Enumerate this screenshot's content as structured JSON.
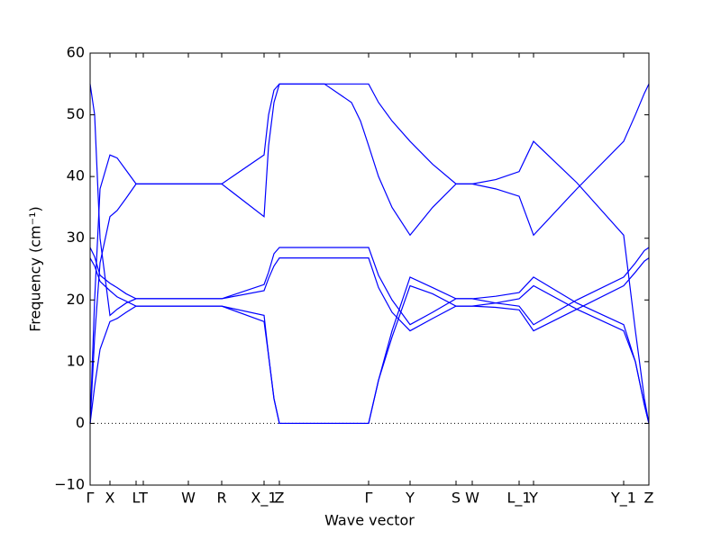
{
  "chart_data": {
    "type": "line",
    "xlabel": "Wave vector",
    "ylabel": "Frequency (cm⁻¹)",
    "xlim": [
      0,
      6.2
    ],
    "ylim": [
      -10,
      60
    ],
    "yticks": [
      {
        "value": -10,
        "label": "−10"
      },
      0,
      10,
      20,
      30,
      40,
      50,
      60
    ],
    "xticks": [
      {
        "value": 0,
        "label": "Γ"
      },
      {
        "value": 0.22,
        "label": "X"
      },
      {
        "value": 0.51,
        "label": "L"
      },
      {
        "value": 0.59,
        "label": "T"
      },
      {
        "value": 1.09,
        "label": "W"
      },
      {
        "value": 1.46,
        "label": "R"
      },
      {
        "value": 1.93,
        "label": "X_1"
      },
      {
        "value": 2.1,
        "label": "Z"
      },
      {
        "value": 3.09,
        "label": "Γ"
      },
      {
        "value": 3.55,
        "label": "Y"
      },
      {
        "value": 4.06,
        "label": "S"
      },
      {
        "value": 4.24,
        "label": "W"
      },
      {
        "value": 4.76,
        "label": "L_1"
      },
      {
        "value": 4.92,
        "label": "Y"
      },
      {
        "value": 5.92,
        "label": "Y_1"
      },
      {
        "value": 6.2,
        "label": "Z"
      }
    ],
    "zero_line": true,
    "x": [
      0,
      0.05,
      0.11,
      0.22,
      0.3,
      0.4,
      0.51,
      0.59,
      1.09,
      1.46,
      1.93,
      1.98,
      2.04,
      2.1,
      2.6,
      2.9,
      3.0,
      3.09,
      3.2,
      3.35,
      3.55,
      3.8,
      4.06,
      4.24,
      4.5,
      4.76,
      4.92,
      5.4,
      5.92,
      6.05,
      6.15,
      6.2
    ],
    "series": [
      {
        "color": "#0000ff",
        "values": [
          55,
          50,
          30,
          17.5,
          18.5,
          19.5,
          20.2,
          20.2,
          20.2,
          20.2,
          22.5,
          24.5,
          27.5,
          28.5,
          28.5,
          28.5,
          28.5,
          28.5,
          24,
          20,
          16,
          18,
          20.2,
          20.2,
          20.6,
          21.2,
          23.7,
          19.5,
          16,
          10,
          3,
          0
        ]
      },
      {
        "color": "#0000ff",
        "values": [
          0,
          20,
          38,
          43.5,
          43,
          41,
          38.8,
          38.8,
          38.8,
          38.8,
          43.5,
          50,
          54,
          55,
          55,
          55,
          55,
          55,
          52,
          49,
          45.7,
          42,
          38.8,
          38.8,
          39.5,
          40.8,
          45.7,
          39,
          30.5,
          15,
          4,
          0
        ]
      },
      {
        "color": "#0000ff",
        "values": [
          0,
          14,
          26,
          33.5,
          34.5,
          36.5,
          38.8,
          38.8,
          38.8,
          38.8,
          33.5,
          45,
          52,
          55,
          55,
          52,
          49,
          45,
          40,
          35,
          30.5,
          35,
          38.8,
          38.8,
          38,
          36.8,
          30.5,
          38,
          45.7,
          50,
          53.5,
          55
        ]
      },
      {
        "color": "#0000ff",
        "values": [
          28.5,
          27,
          24,
          22.7,
          22,
          21,
          20.2,
          20.2,
          20.2,
          20.2,
          21.5,
          23.5,
          25.5,
          26.8,
          26.8,
          26.8,
          26.8,
          26.8,
          22,
          18,
          15,
          17,
          19,
          19,
          19.5,
          20.2,
          22.3,
          18.5,
          15,
          10,
          3,
          0
        ]
      },
      {
        "color": "#0000ff",
        "values": [
          26.8,
          25.5,
          23,
          21.5,
          20.5,
          19.8,
          19,
          19,
          19,
          19,
          17.5,
          11,
          4,
          0,
          0,
          0,
          0,
          0,
          7,
          15,
          23.7,
          22,
          20.2,
          20.2,
          19.5,
          19,
          16,
          20,
          23.7,
          26,
          28,
          28.5
        ]
      },
      {
        "color": "#0000ff",
        "values": [
          0,
          6,
          12,
          16.5,
          17,
          18,
          19,
          19,
          19,
          19,
          16.5,
          11,
          4,
          0,
          0,
          0,
          0,
          0,
          7,
          14,
          22.3,
          21,
          19,
          19,
          18.8,
          18.4,
          15,
          18.5,
          22.3,
          24.5,
          26.3,
          26.8
        ]
      }
    ]
  }
}
